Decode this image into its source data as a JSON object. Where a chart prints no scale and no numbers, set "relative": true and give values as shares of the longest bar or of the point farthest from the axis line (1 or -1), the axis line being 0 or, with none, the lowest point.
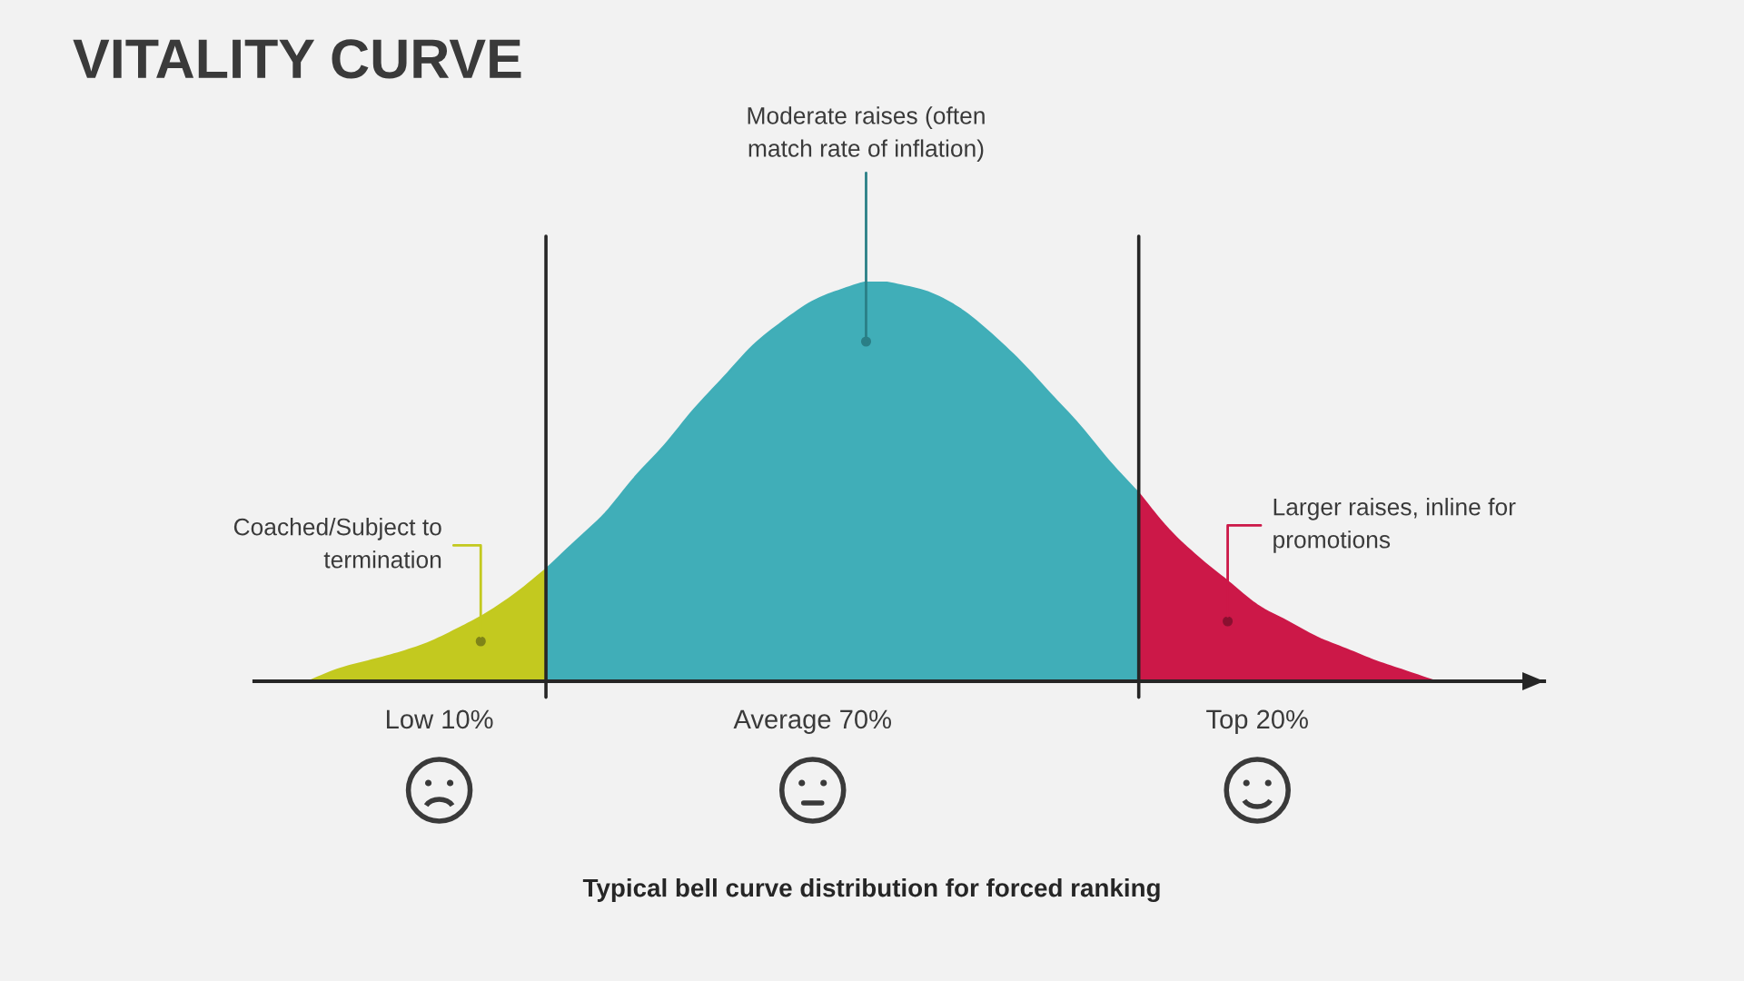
{
  "chart_data": {
    "type": "area",
    "relative": true,
    "title": "VITALITY CURVE",
    "categories": [
      null,
      null,
      null,
      null,
      null,
      null,
      null,
      null,
      null,
      null,
      null,
      null,
      null,
      null,
      null,
      null,
      null,
      null,
      null,
      null,
      null,
      null,
      null,
      null,
      null,
      null,
      null,
      null,
      null,
      null,
      null,
      null,
      null,
      null,
      null,
      null,
      null,
      null,
      null
    ],
    "series": [
      {
        "name": "Low 10%",
        "color": "#c3c91f",
        "values": [
          0,
          0.03,
          0.05,
          0.07,
          0.095,
          0.13,
          0.17,
          0.22,
          0.28,
          null,
          null,
          null,
          null,
          null,
          null,
          null,
          null,
          null,
          null,
          null,
          null,
          null,
          null,
          null,
          null,
          null,
          null,
          null,
          null,
          null,
          null,
          null,
          null,
          null,
          null,
          null,
          null,
          null,
          null
        ]
      },
      {
        "name": "Average 70%",
        "color": "#40aeb8",
        "values": [
          null,
          null,
          null,
          null,
          null,
          null,
          null,
          null,
          0.28,
          0.35,
          0.42,
          0.51,
          0.59,
          0.68,
          0.76,
          0.84,
          0.9,
          0.95,
          0.98,
          1,
          0.99,
          0.97,
          0.93,
          0.87,
          0.8,
          0.72,
          0.64,
          0.55,
          0.47,
          null,
          null,
          null,
          null,
          null,
          null,
          null,
          null,
          null,
          null
        ]
      },
      {
        "name": "Top 20%",
        "color": "#cc1848",
        "values": [
          null,
          null,
          null,
          null,
          null,
          null,
          null,
          null,
          null,
          null,
          null,
          null,
          null,
          null,
          null,
          null,
          null,
          null,
          null,
          null,
          null,
          null,
          null,
          null,
          null,
          null,
          null,
          null,
          0.47,
          0.38,
          0.31,
          0.25,
          0.19,
          0.15,
          0.11,
          0.08,
          0.05,
          0.025,
          0
        ]
      }
    ],
    "annotations": [
      "Coached/Subject to\ntermination",
      "Moderate raises (often\nmatch rate of inflation)",
      "Larger raises, inline for\npromotions",
      "Typical bell curve distribution for forced ranking"
    ]
  }
}
